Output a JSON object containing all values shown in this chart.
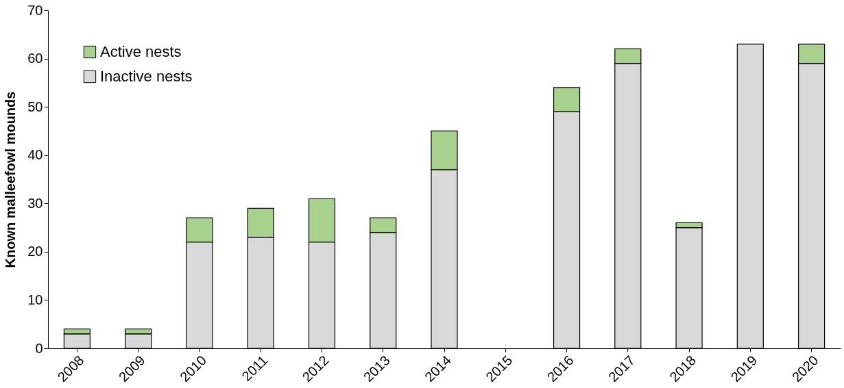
{
  "chart_data": {
    "type": "bar",
    "stacked": true,
    "ylabel": "Known malleefowl mounds",
    "categories": [
      "2008",
      "2009",
      "2010",
      "2011",
      "2012",
      "2013",
      "2014",
      "2015",
      "2016",
      "2017",
      "2018",
      "2019",
      "2020"
    ],
    "series": [
      {
        "name": "Inactive nests",
        "color": "#d9d9d9",
        "values": [
          3,
          3,
          22,
          23,
          22,
          24,
          37,
          null,
          49,
          59,
          25,
          63,
          59
        ]
      },
      {
        "name": "Active nests",
        "color": "#a9d18e",
        "values": [
          1,
          1,
          5,
          6,
          9,
          3,
          8,
          null,
          5,
          3,
          1,
          null,
          4
        ]
      }
    ],
    "ylim": [
      0,
      70
    ],
    "yticks": [
      0,
      10,
      20,
      30,
      40,
      50,
      60,
      70
    ],
    "grid": false,
    "legend": "top left"
  }
}
